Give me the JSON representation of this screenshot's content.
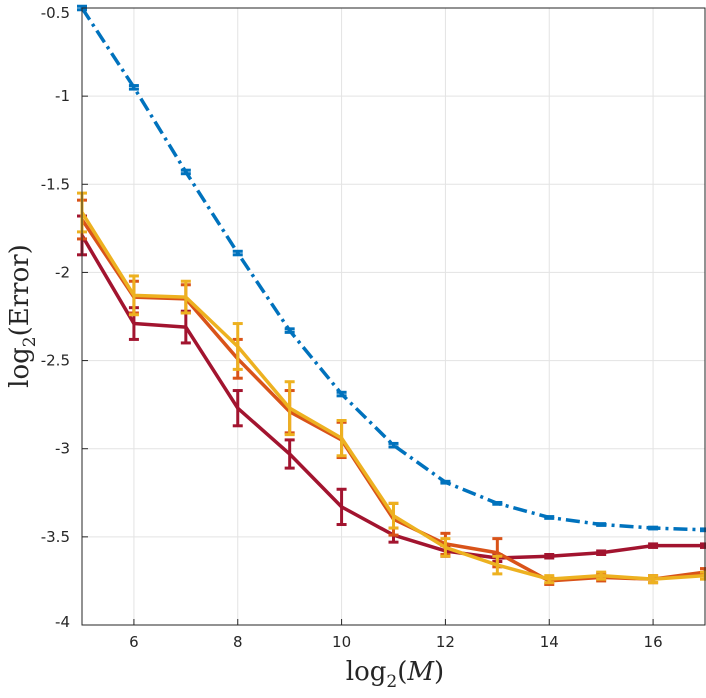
{
  "chart_data": {
    "type": "line",
    "title": "",
    "xlabel": {
      "prefix": "log",
      "sub": "2",
      "open": "(",
      "var": "M",
      "close": ")"
    },
    "ylabel": {
      "prefix": "log",
      "sub": "2",
      "open": "(",
      "var": "Error",
      "close": ")"
    },
    "xlim": [
      5,
      17
    ],
    "ylim": [
      -4,
      -0.5
    ],
    "xticks": [
      6,
      8,
      10,
      12,
      14,
      16
    ],
    "xtick_labels": [
      "6",
      "8",
      "10",
      "12",
      "14",
      "16"
    ],
    "yticks": [
      -4,
      -3.5,
      -3,
      -2.5,
      -2,
      -1.5,
      -1,
      -0.5
    ],
    "ytick_labels": [
      "-4",
      "-3.5",
      "-3",
      "-2.5",
      "-2",
      "-1.5",
      "-1",
      "-0.5"
    ],
    "grid": true,
    "series": [
      {
        "name": "blue-dashdot",
        "color": "#0072BD",
        "style": "dashdot",
        "x": [
          5,
          6,
          7,
          8,
          9,
          10,
          11,
          12,
          13,
          14,
          15,
          16,
          17
        ],
        "values": [
          -0.5,
          -0.95,
          -1.43,
          -1.89,
          -2.33,
          -2.69,
          -2.98,
          -3.19,
          -3.31,
          -3.39,
          -3.43,
          -3.45,
          -3.46
        ],
        "errors": [
          0.01,
          0.01,
          0.01,
          0.01,
          0.01,
          0.01,
          0.01,
          0.005,
          0.005,
          0.005,
          0.005,
          0.005,
          0.005
        ]
      },
      {
        "name": "dark-red",
        "color": "#A2142F",
        "style": "solid",
        "x": [
          5,
          6,
          7,
          8,
          9,
          10,
          11,
          12,
          13,
          14,
          15,
          16,
          17
        ],
        "values": [
          -1.79,
          -2.29,
          -2.31,
          -2.77,
          -3.03,
          -3.33,
          -3.49,
          -3.58,
          -3.62,
          -3.61,
          -3.59,
          -3.55,
          -3.55
        ],
        "errors": [
          0.11,
          0.09,
          0.09,
          0.1,
          0.08,
          0.1,
          0.04,
          0.03,
          0.02,
          0.01,
          0.01,
          0.01,
          0.01
        ]
      },
      {
        "name": "orange",
        "color": "#D95319",
        "style": "solid",
        "x": [
          5,
          6,
          7,
          8,
          9,
          10,
          11,
          12,
          13,
          14,
          15,
          16,
          17
        ],
        "values": [
          -1.7,
          -2.14,
          -2.15,
          -2.49,
          -2.79,
          -2.95,
          -3.4,
          -3.54,
          -3.59,
          -3.75,
          -3.73,
          -3.74,
          -3.7
        ],
        "errors": [
          0.11,
          0.09,
          0.08,
          0.11,
          0.12,
          0.1,
          0.09,
          0.06,
          0.08,
          0.02,
          0.02,
          0.02,
          0.02
        ]
      },
      {
        "name": "yellow",
        "color": "#EDB120",
        "style": "solid",
        "x": [
          5,
          6,
          7,
          8,
          9,
          10,
          11,
          12,
          13,
          14,
          15,
          16,
          17
        ],
        "values": [
          -1.66,
          -2.13,
          -2.14,
          -2.42,
          -2.77,
          -2.94,
          -3.38,
          -3.56,
          -3.66,
          -3.74,
          -3.72,
          -3.74,
          -3.72
        ],
        "errors": [
          0.11,
          0.11,
          0.09,
          0.13,
          0.15,
          0.1,
          0.07,
          0.05,
          0.05,
          0.02,
          0.02,
          0.02,
          0.02
        ]
      }
    ]
  }
}
